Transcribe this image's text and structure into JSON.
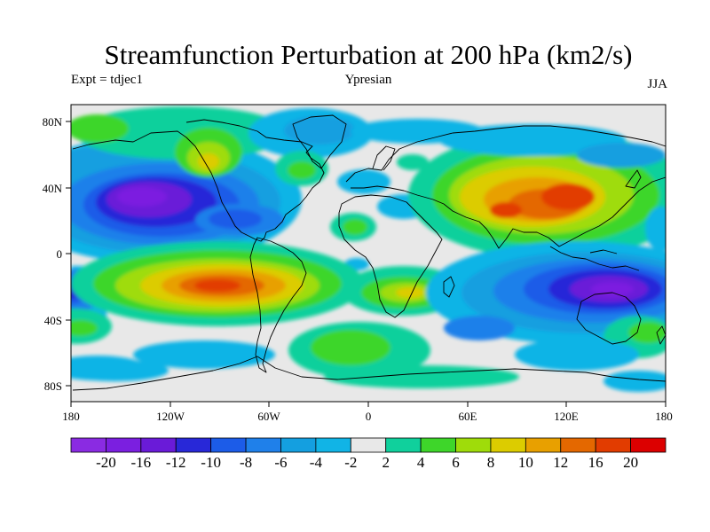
{
  "title": "Streamfunction Perturbation at 200 hPa (km2/s)",
  "left_label": "Expt = tdjec1",
  "center_label": "Ypresian",
  "right_label": "JJA",
  "axes": {
    "x_ticks": [
      "180",
      "120W",
      "60W",
      "0",
      "60E",
      "120E",
      "180"
    ],
    "y_ticks": [
      "80N",
      "40N",
      "0",
      "40S",
      "80S"
    ]
  },
  "colorbar": {
    "labels": [
      "-20",
      "-16",
      "-12",
      "-10",
      "-8",
      "-6",
      "-4",
      "-2",
      "2",
      "4",
      "6",
      "8",
      "10",
      "12",
      "16",
      "20"
    ],
    "colors": [
      "#8a2be2",
      "#7b1fe0",
      "#6a1bd8",
      "#2828d8",
      "#1c5ce8",
      "#1f80ea",
      "#149fe0",
      "#11b4e6",
      "#e8e8e8",
      "#10d09c",
      "#3ed62a",
      "#9fdc0a",
      "#dccc00",
      "#e8a000",
      "#e46800",
      "#e23c00",
      "#dc0000"
    ]
  },
  "colors": {
    "neutral": "#e8e8e8",
    "coast": "#000000"
  }
}
